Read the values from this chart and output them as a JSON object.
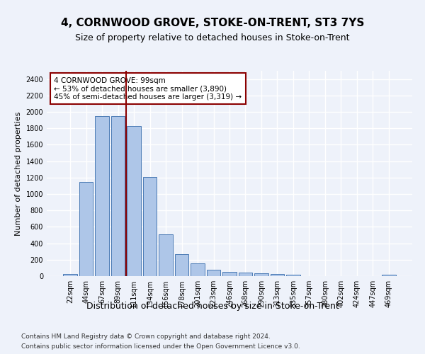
{
  "title": "4, CORNWOOD GROVE, STOKE-ON-TRENT, ST3 7YS",
  "subtitle": "Size of property relative to detached houses in Stoke-on-Trent",
  "xlabel": "Distribution of detached houses by size in Stoke-on-Trent",
  "ylabel": "Number of detached properties",
  "bar_labels": [
    "22sqm",
    "44sqm",
    "67sqm",
    "89sqm",
    "111sqm",
    "134sqm",
    "156sqm",
    "178sqm",
    "201sqm",
    "223sqm",
    "246sqm",
    "268sqm",
    "290sqm",
    "313sqm",
    "335sqm",
    "357sqm",
    "380sqm",
    "402sqm",
    "424sqm",
    "447sqm",
    "469sqm"
  ],
  "bar_values": [
    30,
    1150,
    1950,
    1950,
    1830,
    1210,
    510,
    265,
    155,
    80,
    50,
    45,
    35,
    22,
    15,
    0,
    0,
    0,
    0,
    0,
    18
  ],
  "bar_color": "#aec6e8",
  "bar_edge_color": "#4a7ab5",
  "vline_x": 3.5,
  "vline_color": "#8b0000",
  "annotation_line1": "4 CORNWOOD GROVE: 99sqm",
  "annotation_line2": "← 53% of detached houses are smaller (3,890)",
  "annotation_line3": "45% of semi-detached houses are larger (3,319) →",
  "annotation_box_color": "#8b0000",
  "annotation_box_fill": "#ffffff",
  "ylim": [
    0,
    2500
  ],
  "yticks": [
    0,
    200,
    400,
    600,
    800,
    1000,
    1200,
    1400,
    1600,
    1800,
    2000,
    2200,
    2400
  ],
  "footnote1": "Contains HM Land Registry data © Crown copyright and database right 2024.",
  "footnote2": "Contains public sector information licensed under the Open Government Licence v3.0.",
  "bg_color": "#eef2fa",
  "plot_bg_color": "#eef2fa",
  "grid_color": "#ffffff",
  "title_fontsize": 11,
  "subtitle_fontsize": 9,
  "xlabel_fontsize": 9,
  "ylabel_fontsize": 8,
  "tick_fontsize": 7,
  "annot_fontsize": 7.5
}
